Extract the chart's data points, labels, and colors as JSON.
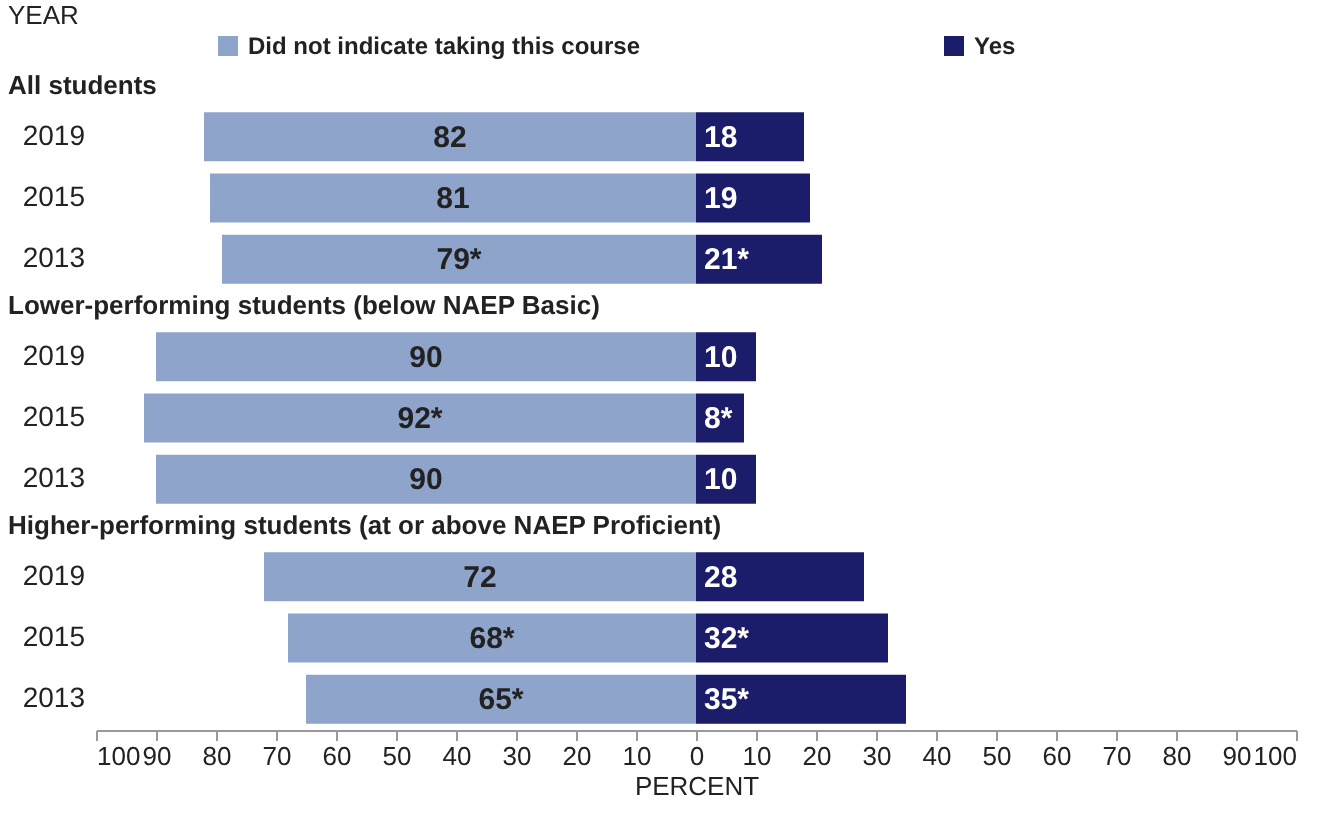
{
  "chart_data": [
    {
      "type": "bar",
      "orientation": "horizontal",
      "stacked": true,
      "title": "All students",
      "ylabel": "YEAR",
      "categories": [
        "2019",
        "2015",
        "2013"
      ],
      "legend": "top",
      "tick_labels": "y",
      "xlim": [
        -100,
        100
      ],
      "series": [
        {
          "name": "Did not indicate taking this course",
          "color": "#8ea4cb",
          "base": [
            -82,
            -81,
            -79
          ],
          "values": [
            82,
            81,
            79
          ],
          "value_labels": [
            "82",
            "81",
            "79*"
          ]
        },
        {
          "name": "Yes",
          "color": "#1b1d6a",
          "values": [
            18,
            19,
            21
          ],
          "value_labels": [
            "18",
            "19",
            "21*"
          ]
        }
      ]
    },
    {
      "type": "bar",
      "orientation": "horizontal",
      "stacked": true,
      "title": "Lower-performing students (below NAEP Basic)",
      "categories": [
        "2019",
        "2015",
        "2013"
      ],
      "tick_labels": "y",
      "xlim": [
        -100,
        100
      ],
      "series": [
        {
          "color": "#8ea4cb",
          "base": [
            -90,
            -92,
            -90
          ],
          "values": [
            90,
            92,
            90
          ],
          "value_labels": [
            "90",
            "92*",
            "90"
          ]
        },
        {
          "color": "#1b1d6a",
          "values": [
            10,
            8,
            10
          ],
          "value_labels": [
            "10",
            "8*",
            "10"
          ]
        }
      ]
    },
    {
      "type": "bar",
      "orientation": "horizontal",
      "stacked": true,
      "title": "Higher-performing students (at or above NAEP Proficient)",
      "xlabel": "PERCENT",
      "categories": [
        "2019",
        "2015",
        "2013"
      ],
      "xlim": [
        -100,
        100
      ],
      "xticks": [
        {
          "value": -100,
          "label": "100"
        },
        {
          "value": -90,
          "label": "90"
        },
        {
          "value": -80,
          "label": "80"
        },
        {
          "value": -70,
          "label": "70"
        },
        {
          "value": -60,
          "label": "60"
        },
        {
          "value": -50,
          "label": "50"
        },
        {
          "value": -40,
          "label": "40"
        },
        {
          "value": -30,
          "label": "30"
        },
        {
          "value": -20,
          "label": "20"
        },
        {
          "value": -10,
          "label": "10"
        },
        0,
        10,
        20,
        30,
        40,
        50,
        60,
        70,
        80,
        90,
        100
      ],
      "series": [
        {
          "color": "#8ea4cb",
          "base": [
            -72,
            -68,
            -65
          ],
          "values": [
            72,
            68,
            65
          ],
          "value_labels": [
            "72",
            "68*",
            "65*"
          ]
        },
        {
          "color": "#1b1d6a",
          "values": [
            28,
            32,
            35
          ],
          "value_labels": [
            "28",
            "32*",
            "35*"
          ]
        }
      ]
    }
  ]
}
